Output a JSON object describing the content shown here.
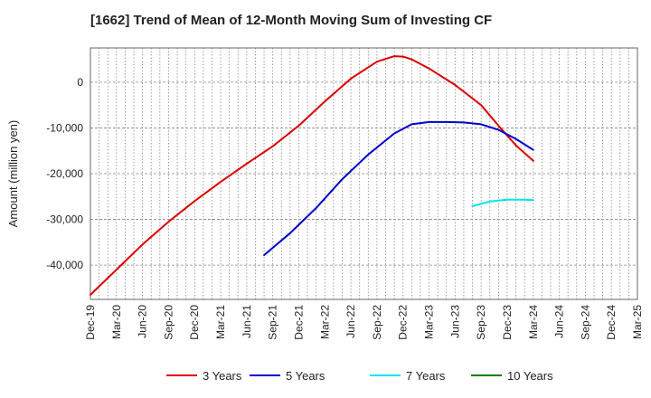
{
  "chart_data": {
    "type": "line",
    "title": "[1662]  Trend of Mean of 12-Month Moving Sum of Investing CF",
    "ylabel": "Amount (million yen)",
    "xlabel": "",
    "x_ticks": [
      "Dec-19",
      "Mar-20",
      "Jun-20",
      "Sep-20",
      "Dec-20",
      "Mar-21",
      "Jun-21",
      "Sep-21",
      "Dec-21",
      "Mar-22",
      "Jun-22",
      "Sep-22",
      "Dec-22",
      "Mar-23",
      "Jun-23",
      "Sep-23",
      "Dec-23",
      "Mar-24",
      "Jun-24",
      "Sep-24",
      "Dec-24",
      "Mar-25"
    ],
    "y_ticks": [
      0,
      -10000,
      -20000,
      -30000,
      -40000
    ],
    "y_tick_labels": [
      "0",
      "-10,000",
      "-20,000",
      "-30,000",
      "-40,000"
    ],
    "ylim": [
      -47500,
      7500
    ],
    "grid": true,
    "legend_position": "bottom",
    "series": [
      {
        "name": "3 Years",
        "color": "#dd0000",
        "points": [
          [
            "Dec-19",
            -46500
          ],
          [
            "Mar-20",
            -41000
          ],
          [
            "Jun-20",
            -35500
          ],
          [
            "Sep-20",
            -30500
          ],
          [
            "Dec-20",
            -26000
          ],
          [
            "Mar-21",
            -21800
          ],
          [
            "Jun-21",
            -17800
          ],
          [
            "Sep-21",
            -14000
          ],
          [
            "Dec-21",
            -9500
          ],
          [
            "Mar-22",
            -4200
          ],
          [
            "Jun-22",
            800
          ],
          [
            "Sep-22",
            4500
          ],
          [
            "Nov-22",
            5700
          ],
          [
            "Dec-22",
            5600
          ],
          [
            "Jan-23",
            5000
          ],
          [
            "Mar-23",
            3000
          ],
          [
            "Jun-23",
            -600
          ],
          [
            "Sep-23",
            -5000
          ],
          [
            "Nov-23",
            -9500
          ],
          [
            "Jan-24",
            -13800
          ],
          [
            "Mar-24",
            -17200
          ]
        ]
      },
      {
        "name": "5 Years",
        "color": "#0000cc",
        "points": [
          [
            "Aug-21",
            -37800
          ],
          [
            "Nov-21",
            -33000
          ],
          [
            "Feb-22",
            -27500
          ],
          [
            "May-22",
            -21200
          ],
          [
            "Aug-22",
            -15800
          ],
          [
            "Nov-22",
            -11200
          ],
          [
            "Jan-23",
            -9200
          ],
          [
            "Mar-23",
            -8700
          ],
          [
            "May-23",
            -8700
          ],
          [
            "Jul-23",
            -8800
          ],
          [
            "Sep-23",
            -9200
          ],
          [
            "Nov-23",
            -10400
          ],
          [
            "Jan-24",
            -12400
          ],
          [
            "Mar-24",
            -14800
          ]
        ]
      },
      {
        "name": "7 Years",
        "color": "#00e5ee",
        "points": [
          [
            "Aug-23",
            -27100
          ],
          [
            "Oct-23",
            -26100
          ],
          [
            "Dec-23",
            -25700
          ],
          [
            "Feb-24",
            -25700
          ],
          [
            "Mar-24",
            -25800
          ]
        ]
      },
      {
        "name": "10 Years",
        "color": "#008000",
        "points": []
      }
    ]
  }
}
